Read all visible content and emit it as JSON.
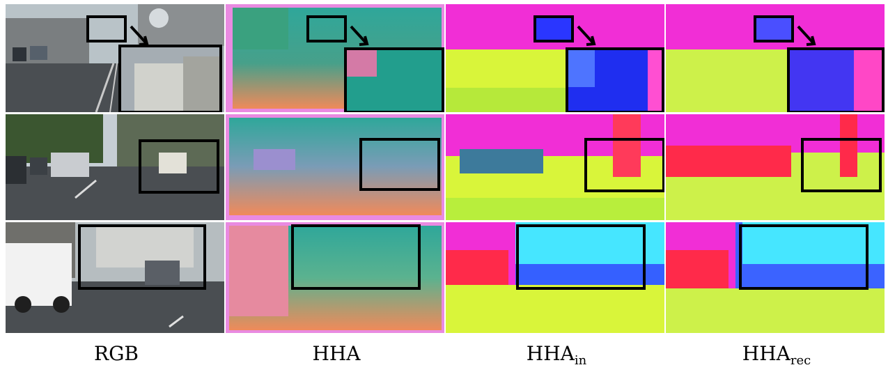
{
  "captions": {
    "rgb": "RGB",
    "hha": "HHA",
    "hha_in_base": "HHA",
    "hha_in_sub": "in",
    "hha_rec_base": "HHA",
    "hha_rec_sub": "rec"
  },
  "columns": [
    "RGB",
    "HHA",
    "HHA_in",
    "HHA_rec"
  ],
  "rows": 3,
  "colors": {
    "rgb_sky": "#b9c3c8",
    "rgb_road": "#4a4e52",
    "rgb_building": "#7a7e80",
    "rgb_tree": "#3b5630",
    "hha_teal": "#2fa79a",
    "hha_orange": "#f08a5a",
    "hha_pink": "#e98ae1",
    "hha_in_magenta": "#f12ed6",
    "hha_in_blue": "#3560ff",
    "hha_in_yellow": "#d9f53a",
    "hha_in_cyan": "#46e6ff",
    "hha_rec_red": "#ff2a4a",
    "hha_rec_blue": "#3b63ff",
    "hha_rec_yellow": "#cdf14a",
    "highlight_box": "#000000"
  }
}
